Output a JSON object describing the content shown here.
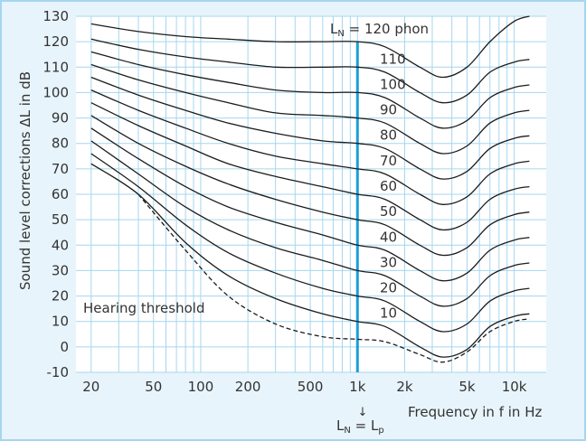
{
  "chart_data": {
    "type": "line",
    "title": "",
    "xlabel": "Frequency in f in Hz",
    "ylabel": "Sound level corrections ΔL in dB",
    "x_scale": "log",
    "xlim": [
      16,
      16000
    ],
    "ylim": [
      -10,
      130
    ],
    "x_ticks": [
      20,
      50,
      100,
      200,
      500,
      1000,
      2000,
      5000,
      10000
    ],
    "x_tick_labels": [
      "20",
      "50",
      "100",
      "200",
      "500",
      "1k",
      "2k",
      "5k",
      "10k"
    ],
    "y_ticks": [
      -10,
      0,
      10,
      20,
      30,
      40,
      50,
      60,
      70,
      80,
      90,
      100,
      110,
      120,
      130
    ],
    "grid": true,
    "reference_line": {
      "x": 1000,
      "color": "#1aa0d8"
    },
    "series": [
      {
        "name": "120 phon",
        "points": [
          [
            20,
            127
          ],
          [
            40,
            124
          ],
          [
            80,
            122
          ],
          [
            150,
            121
          ],
          [
            300,
            120
          ],
          [
            600,
            120
          ],
          [
            1000,
            120
          ],
          [
            1500,
            118
          ],
          [
            2500,
            110
          ],
          [
            3500,
            106
          ],
          [
            5000,
            110
          ],
          [
            7000,
            120
          ],
          [
            10000,
            128
          ],
          [
            12500,
            130
          ]
        ]
      },
      {
        "name": "110",
        "points": [
          [
            20,
            121
          ],
          [
            40,
            117
          ],
          [
            80,
            114
          ],
          [
            150,
            112
          ],
          [
            300,
            110
          ],
          [
            600,
            110
          ],
          [
            1000,
            110
          ],
          [
            1500,
            108
          ],
          [
            2500,
            100
          ],
          [
            3500,
            96
          ],
          [
            5000,
            99
          ],
          [
            7000,
            108
          ],
          [
            10000,
            112
          ],
          [
            12500,
            113
          ]
        ]
      },
      {
        "name": "100",
        "points": [
          [
            20,
            116
          ],
          [
            40,
            111
          ],
          [
            80,
            107
          ],
          [
            150,
            104
          ],
          [
            300,
            101
          ],
          [
            600,
            100
          ],
          [
            1000,
            100
          ],
          [
            1500,
            98
          ],
          [
            2500,
            90
          ],
          [
            3500,
            86
          ],
          [
            5000,
            89
          ],
          [
            7000,
            98
          ],
          [
            10000,
            102
          ],
          [
            12500,
            103
          ]
        ]
      },
      {
        "name": "90",
        "points": [
          [
            20,
            111
          ],
          [
            40,
            105
          ],
          [
            80,
            100
          ],
          [
            150,
            96
          ],
          [
            300,
            92
          ],
          [
            600,
            91
          ],
          [
            1000,
            90
          ],
          [
            1500,
            88
          ],
          [
            2500,
            80
          ],
          [
            3500,
            76
          ],
          [
            5000,
            79
          ],
          [
            7000,
            88
          ],
          [
            10000,
            92
          ],
          [
            12500,
            93
          ]
        ]
      },
      {
        "name": "80",
        "points": [
          [
            20,
            106
          ],
          [
            40,
            99
          ],
          [
            80,
            93
          ],
          [
            150,
            88
          ],
          [
            300,
            84
          ],
          [
            600,
            81
          ],
          [
            1000,
            80
          ],
          [
            1500,
            78
          ],
          [
            2500,
            70
          ],
          [
            3500,
            66
          ],
          [
            5000,
            69
          ],
          [
            7000,
            78
          ],
          [
            10000,
            82
          ],
          [
            12500,
            83
          ]
        ]
      },
      {
        "name": "70",
        "points": [
          [
            20,
            101
          ],
          [
            40,
            93
          ],
          [
            80,
            86
          ],
          [
            150,
            80
          ],
          [
            300,
            75
          ],
          [
            600,
            72
          ],
          [
            1000,
            70
          ],
          [
            1500,
            68
          ],
          [
            2500,
            60
          ],
          [
            3500,
            56
          ],
          [
            5000,
            59
          ],
          [
            7000,
            68
          ],
          [
            10000,
            72
          ],
          [
            12500,
            73
          ]
        ]
      },
      {
        "name": "60",
        "points": [
          [
            20,
            96
          ],
          [
            40,
            87
          ],
          [
            80,
            79
          ],
          [
            150,
            72
          ],
          [
            300,
            67
          ],
          [
            600,
            63
          ],
          [
            1000,
            60
          ],
          [
            1500,
            58
          ],
          [
            2500,
            50
          ],
          [
            3500,
            46
          ],
          [
            5000,
            49
          ],
          [
            7000,
            58
          ],
          [
            10000,
            62
          ],
          [
            12500,
            63
          ]
        ]
      },
      {
        "name": "50",
        "points": [
          [
            20,
            91
          ],
          [
            40,
            80
          ],
          [
            80,
            71
          ],
          [
            150,
            64
          ],
          [
            300,
            58
          ],
          [
            600,
            53
          ],
          [
            1000,
            50
          ],
          [
            1500,
            48
          ],
          [
            2500,
            40
          ],
          [
            3500,
            36
          ],
          [
            5000,
            39
          ],
          [
            7000,
            48
          ],
          [
            10000,
            52
          ],
          [
            12500,
            53
          ]
        ]
      },
      {
        "name": "40",
        "points": [
          [
            20,
            86
          ],
          [
            40,
            74
          ],
          [
            80,
            63
          ],
          [
            150,
            55
          ],
          [
            300,
            49
          ],
          [
            600,
            44
          ],
          [
            1000,
            40
          ],
          [
            1500,
            38
          ],
          [
            2500,
            30
          ],
          [
            3500,
            26
          ],
          [
            5000,
            29
          ],
          [
            7000,
            38
          ],
          [
            10000,
            42
          ],
          [
            12500,
            43
          ]
        ]
      },
      {
        "name": "30",
        "points": [
          [
            20,
            81
          ],
          [
            40,
            68
          ],
          [
            80,
            55
          ],
          [
            150,
            46
          ],
          [
            300,
            39
          ],
          [
            600,
            34
          ],
          [
            1000,
            30
          ],
          [
            1500,
            28
          ],
          [
            2500,
            20
          ],
          [
            3500,
            16
          ],
          [
            5000,
            19
          ],
          [
            7000,
            28
          ],
          [
            10000,
            32
          ],
          [
            12500,
            33
          ]
        ]
      },
      {
        "name": "20",
        "points": [
          [
            20,
            76
          ],
          [
            40,
            63
          ],
          [
            80,
            48
          ],
          [
            150,
            37
          ],
          [
            300,
            29
          ],
          [
            600,
            23
          ],
          [
            1000,
            20
          ],
          [
            1500,
            18
          ],
          [
            2500,
            10
          ],
          [
            3500,
            6
          ],
          [
            5000,
            9
          ],
          [
            7000,
            18
          ],
          [
            10000,
            22
          ],
          [
            12500,
            23
          ]
        ]
      },
      {
        "name": "10",
        "points": [
          [
            20,
            72
          ],
          [
            40,
            60
          ],
          [
            80,
            41
          ],
          [
            150,
            28
          ],
          [
            300,
            19
          ],
          [
            600,
            13
          ],
          [
            1000,
            10
          ],
          [
            1500,
            8
          ],
          [
            2500,
            0
          ],
          [
            3500,
            -4
          ],
          [
            5000,
            -1
          ],
          [
            7000,
            8
          ],
          [
            10000,
            12
          ],
          [
            12500,
            13
          ]
        ]
      },
      {
        "name": "Hearing threshold",
        "dashed": true,
        "points": [
          [
            40,
            60
          ],
          [
            80,
            38
          ],
          [
            150,
            20
          ],
          [
            300,
            9
          ],
          [
            600,
            4
          ],
          [
            1000,
            3
          ],
          [
            1500,
            2
          ],
          [
            2500,
            -3
          ],
          [
            3500,
            -6
          ],
          [
            5000,
            -2
          ],
          [
            7000,
            6
          ],
          [
            10000,
            10
          ],
          [
            12500,
            11
          ]
        ]
      }
    ],
    "labels": {
      "top": "L",
      "top_sub": "N",
      "top_rest": " = 120 phon",
      "phon": [
        "110",
        "100",
        "90",
        "80",
        "70",
        "60",
        "50",
        "40",
        "30",
        "20",
        "10"
      ],
      "hearing": "Hearing threshold",
      "bottom_L1": "L",
      "bottom_sub1": "N",
      "bottom_eq": " = L",
      "bottom_sub2": "p",
      "arrow": "↓"
    }
  }
}
